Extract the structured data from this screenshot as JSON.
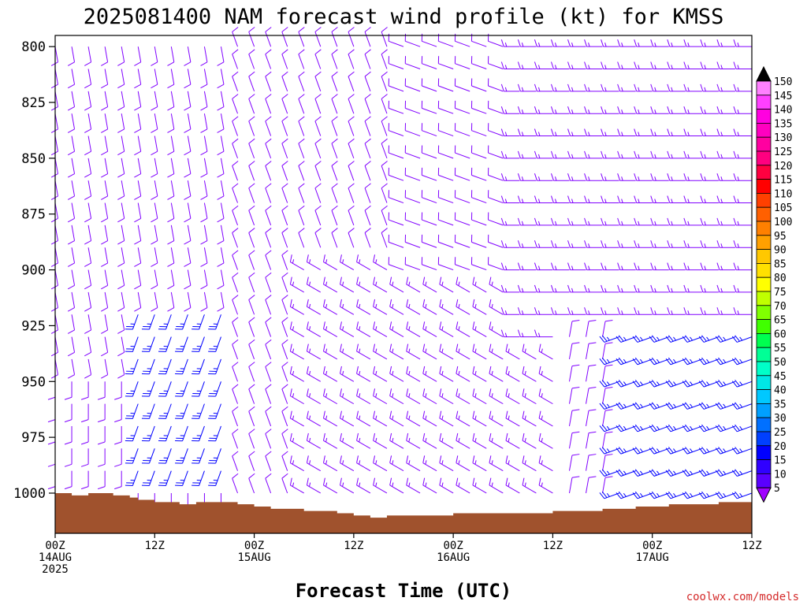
{
  "title": "2025081400 NAM forecast wind profile (kt) for KMSS",
  "credit": "coolwx.com/models",
  "chart_data": {
    "type": "wind-barb-profile",
    "title": "2025081400 NAM forecast wind profile (kt) for KMSS",
    "xlabel": "Forecast Time (UTC)",
    "ylabel": "",
    "y_axis": "pressure (hPa), inverted",
    "ylim": [
      1018,
      795
    ],
    "xlim_hours": [
      0,
      84
    ],
    "y_ticks": [
      800,
      825,
      850,
      875,
      900,
      925,
      950,
      975,
      1000
    ],
    "x_ticks": [
      {
        "hour": 0,
        "line1": "00Z",
        "line2": "14AUG",
        "line3": "2025"
      },
      {
        "hour": 12,
        "line1": "12Z",
        "line2": "",
        "line3": ""
      },
      {
        "hour": 24,
        "line1": "00Z",
        "line2": "15AUG",
        "line3": ""
      },
      {
        "hour": 36,
        "line1": "12Z",
        "line2": "",
        "line3": ""
      },
      {
        "hour": 48,
        "line1": "00Z",
        "line2": "16AUG",
        "line3": ""
      },
      {
        "hour": 60,
        "line1": "12Z",
        "line2": "",
        "line3": ""
      },
      {
        "hour": 72,
        "line1": "00Z",
        "line2": "17AUG",
        "line3": ""
      },
      {
        "hour": 84,
        "line1": "12Z",
        "line2": "",
        "line3": ""
      }
    ],
    "surface_pressure": [
      {
        "hour": 0,
        "p": 1000
      },
      {
        "hour": 2,
        "p": 1001
      },
      {
        "hour": 4,
        "p": 1000
      },
      {
        "hour": 7,
        "p": 1001
      },
      {
        "hour": 9,
        "p": 1002
      },
      {
        "hour": 10,
        "p": 1003
      },
      {
        "hour": 12,
        "p": 1004
      },
      {
        "hour": 15,
        "p": 1005
      },
      {
        "hour": 17,
        "p": 1004
      },
      {
        "hour": 22,
        "p": 1005
      },
      {
        "hour": 24,
        "p": 1006
      },
      {
        "hour": 26,
        "p": 1007
      },
      {
        "hour": 30,
        "p": 1008
      },
      {
        "hour": 34,
        "p": 1009
      },
      {
        "hour": 36,
        "p": 1010
      },
      {
        "hour": 38,
        "p": 1011
      },
      {
        "hour": 40,
        "p": 1010
      },
      {
        "hour": 44,
        "p": 1010
      },
      {
        "hour": 48,
        "p": 1009
      },
      {
        "hour": 56,
        "p": 1009
      },
      {
        "hour": 60,
        "p": 1008
      },
      {
        "hour": 64,
        "p": 1008
      },
      {
        "hour": 66,
        "p": 1007
      },
      {
        "hour": 70,
        "p": 1006
      },
      {
        "hour": 74,
        "p": 1005
      },
      {
        "hour": 80,
        "p": 1004
      },
      {
        "hour": 84,
        "p": 1004
      }
    ],
    "colorbar": {
      "levels": [
        5,
        10,
        15,
        20,
        25,
        30,
        35,
        40,
        45,
        50,
        55,
        60,
        65,
        70,
        75,
        80,
        85,
        90,
        95,
        100,
        105,
        110,
        115,
        120,
        125,
        130,
        135,
        140,
        145,
        150
      ],
      "colors": [
        "#8000ff",
        "#5a00ff",
        "#3000ff",
        "#0000ff",
        "#0040ff",
        "#0070ff",
        "#00a0ff",
        "#00c8ff",
        "#00e6e6",
        "#00ffc8",
        "#00ff96",
        "#00ff50",
        "#40ff00",
        "#80ff00",
        "#c0ff00",
        "#ffff00",
        "#ffe000",
        "#ffc800",
        "#ffa000",
        "#ff8000",
        "#ff6000",
        "#ff4000",
        "#ff0000",
        "#ff0040",
        "#ff0080",
        "#ff00a0",
        "#ff00c0",
        "#ff00e0",
        "#ff40ff",
        "#ff80ff"
      ],
      "top_arrow_color": "#000000",
      "bottom_arrow_color": "#a000ff"
    },
    "colors": {
      "ground": "#a0522d",
      "barb_light": "#8000ff",
      "barb_strong": "#0000ff"
    },
    "wind_field": {
      "hours": [
        0,
        2,
        4,
        6,
        8,
        10,
        12,
        14,
        16,
        18,
        20,
        22,
        24,
        26,
        28,
        30,
        32,
        34,
        36,
        38,
        40,
        42,
        44,
        46,
        48,
        50,
        52,
        54,
        56,
        58,
        60,
        62,
        64,
        66,
        68,
        70,
        72,
        74,
        76,
        78,
        80,
        82,
        84
      ],
      "levels_hpa": [
        800,
        810,
        820,
        830,
        840,
        850,
        860,
        870,
        880,
        890,
        900,
        910,
        920,
        930,
        940,
        950,
        960,
        970,
        980,
        990,
        1000
      ],
      "description_direction_deg": "approximate wind direction (from) and speed (kt) per hour/level",
      "regimes": [
        {
          "hours": [
            0,
            22
          ],
          "p_range": [
            800,
            940
          ],
          "dir": 170,
          "spd": 12
        },
        {
          "hours": [
            10,
            22
          ],
          "p_range": [
            920,
            990
          ],
          "dir": 200,
          "spd": 25
        },
        {
          "hours": [
            22,
            42
          ],
          "p_range": [
            800,
            1000
          ],
          "dir": 340,
          "spd": 12
        },
        {
          "hours": [
            30,
            60
          ],
          "p_range": [
            900,
            1010
          ],
          "dir": 300,
          "spd": 15
        },
        {
          "hours": [
            42,
            56
          ],
          "p_range": [
            800,
            900
          ],
          "dir": 290,
          "spd": 12
        },
        {
          "hours": [
            56,
            84
          ],
          "p_range": [
            800,
            930
          ],
          "dir": 270,
          "spd": 15
        },
        {
          "hours": [
            62,
            68
          ],
          "p_range": [
            930,
            1010
          ],
          "dir": 10,
          "spd": 10
        },
        {
          "hours": [
            68,
            84
          ],
          "p_range": [
            930,
            1000
          ],
          "dir": 250,
          "spd": 28
        }
      ]
    }
  }
}
